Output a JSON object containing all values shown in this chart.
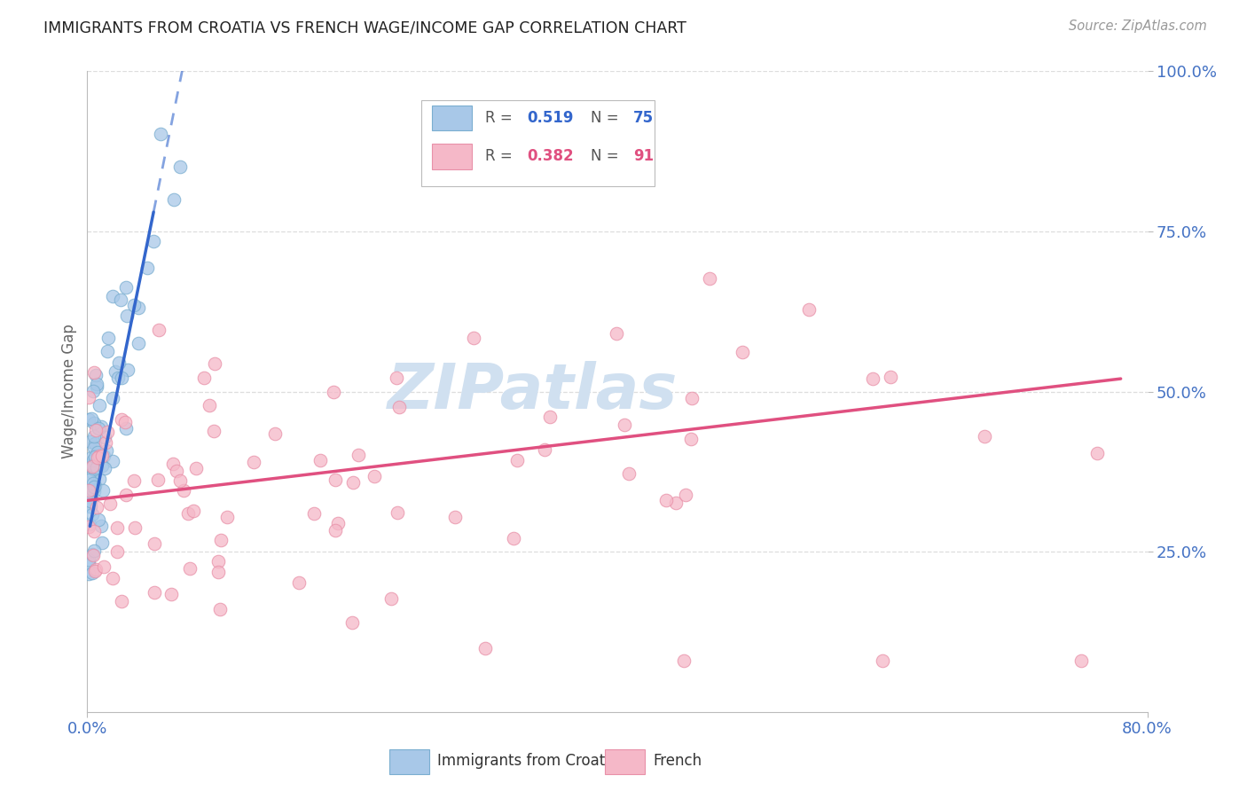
{
  "title": "IMMIGRANTS FROM CROATIA VS FRENCH WAGE/INCOME GAP CORRELATION CHART",
  "source_text": "Source: ZipAtlas.com",
  "ylabel": "Wage/Income Gap",
  "xlim": [
    0.0,
    0.8
  ],
  "ylim": [
    0.0,
    1.0
  ],
  "blue_color": "#a8c8e8",
  "blue_marker_edge": "#7aaed0",
  "pink_color": "#f5b8c8",
  "pink_marker_edge": "#e890a8",
  "blue_line_color": "#3366cc",
  "pink_line_color": "#e05080",
  "axis_color": "#4472C4",
  "grid_color": "#dddddd",
  "title_color": "#222222",
  "watermark_color": "#d0e0f0",
  "source_color": "#999999",
  "legend_r1_val": "0.519",
  "legend_n1_val": "75",
  "legend_r2_val": "0.382",
  "legend_n2_val": "91"
}
